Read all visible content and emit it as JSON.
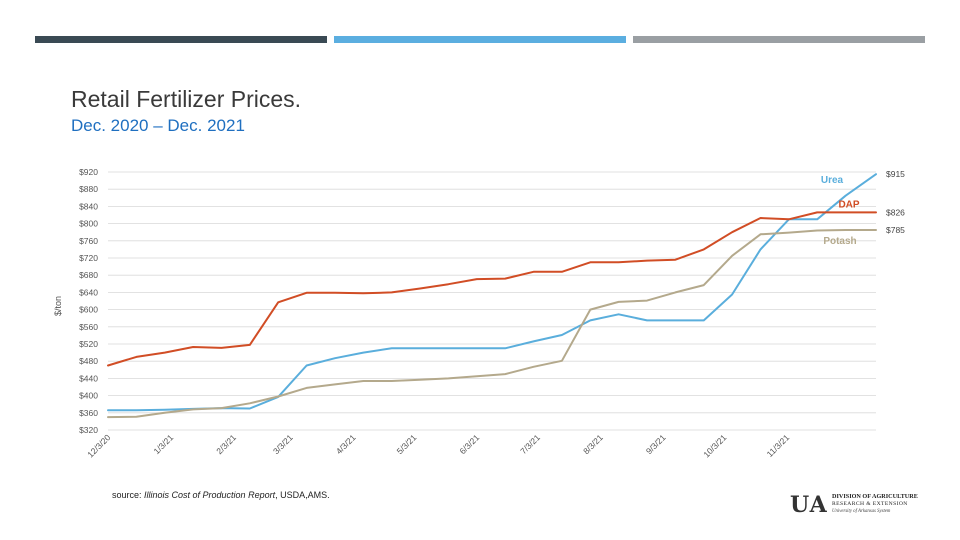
{
  "colors": {
    "bar1": "#3a4a54",
    "bar2": "#5baee0",
    "bar3": "#9a9fa3"
  },
  "header": {
    "title": "Retail Fertilizer Prices.",
    "subtitle": "Dec. 2020 – Dec. 2021"
  },
  "footer": {
    "source_prefix": "source: ",
    "source_italic": "Illinois Cost of Production Report",
    "source_suffix": ", USDA,AMS."
  },
  "logo": {
    "mark": "U A",
    "line1": "DIVISION OF AGRICULTURE",
    "line2": "RESEARCH & EXTENSION",
    "line3": "University of Arkansas System"
  },
  "chart_data": {
    "type": "line",
    "title": "",
    "xlabel": "",
    "ylabel": "$/ton",
    "ylim": [
      320,
      920
    ],
    "ytick_step": 40,
    "ytick_labels": [
      "$320",
      "$360",
      "$400",
      "$440",
      "$480",
      "$520",
      "$560",
      "$600",
      "$640",
      "$680",
      "$720",
      "$760",
      "$800",
      "$840",
      "$880",
      "$920"
    ],
    "xlim": [
      "2020-12-03",
      "2021-12-17"
    ],
    "xticks": [
      {
        "date": "2020-12-03",
        "label": "12/3/20"
      },
      {
        "date": "2021-01-03",
        "label": "1/3/21"
      },
      {
        "date": "2021-02-03",
        "label": "2/3/21"
      },
      {
        "date": "2021-03-03",
        "label": "3/3/21"
      },
      {
        "date": "2021-04-03",
        "label": "4/3/21"
      },
      {
        "date": "2021-05-03",
        "label": "5/3/21"
      },
      {
        "date": "2021-06-03",
        "label": "6/3/21"
      },
      {
        "date": "2021-07-03",
        "label": "7/3/21"
      },
      {
        "date": "2021-08-03",
        "label": "8/3/21"
      },
      {
        "date": "2021-09-03",
        "label": "9/3/21"
      },
      {
        "date": "2021-10-03",
        "label": "10/3/21"
      },
      {
        "date": "2021-11-03",
        "label": "11/3/21"
      }
    ],
    "grid": true,
    "series": [
      {
        "name": "Urea",
        "color": "#5aaedc",
        "end_label": "$915",
        "points": [
          [
            "2020-12-03",
            366
          ],
          [
            "2020-12-17",
            366
          ],
          [
            "2020-12-31",
            367
          ],
          [
            "2021-01-14",
            369
          ],
          [
            "2021-01-28",
            371
          ],
          [
            "2021-02-11",
            370
          ],
          [
            "2021-02-25",
            397
          ],
          [
            "2021-03-11",
            470
          ],
          [
            "2021-03-25",
            487
          ],
          [
            "2021-04-08",
            500
          ],
          [
            "2021-04-22",
            510
          ],
          [
            "2021-05-06",
            510
          ],
          [
            "2021-05-20",
            510
          ],
          [
            "2021-06-03",
            510
          ],
          [
            "2021-06-17",
            510
          ],
          [
            "2021-07-01",
            526
          ],
          [
            "2021-07-15",
            541
          ],
          [
            "2021-07-29",
            575
          ],
          [
            "2021-08-12",
            589
          ],
          [
            "2021-08-26",
            575
          ],
          [
            "2021-09-09",
            575
          ],
          [
            "2021-09-23",
            575
          ],
          [
            "2021-10-07",
            635
          ],
          [
            "2021-10-21",
            740
          ],
          [
            "2021-11-04",
            810
          ],
          [
            "2021-11-18",
            810
          ],
          [
            "2021-12-02",
            865
          ],
          [
            "2021-12-17",
            915
          ]
        ]
      },
      {
        "name": "DAP",
        "color": "#d14d25",
        "end_label": "$826",
        "points": [
          [
            "2020-12-03",
            470
          ],
          [
            "2020-12-17",
            490
          ],
          [
            "2020-12-31",
            500
          ],
          [
            "2021-01-14",
            513
          ],
          [
            "2021-01-28",
            511
          ],
          [
            "2021-02-11",
            518
          ],
          [
            "2021-02-25",
            617
          ],
          [
            "2021-03-11",
            639
          ],
          [
            "2021-03-25",
            639
          ],
          [
            "2021-04-08",
            638
          ],
          [
            "2021-04-22",
            640
          ],
          [
            "2021-05-06",
            649
          ],
          [
            "2021-05-20",
            659
          ],
          [
            "2021-06-03",
            671
          ],
          [
            "2021-06-17",
            672
          ],
          [
            "2021-07-01",
            688
          ],
          [
            "2021-07-15",
            688
          ],
          [
            "2021-07-29",
            710
          ],
          [
            "2021-08-12",
            710
          ],
          [
            "2021-08-26",
            714
          ],
          [
            "2021-09-09",
            716
          ],
          [
            "2021-09-23",
            740
          ],
          [
            "2021-10-07",
            780
          ],
          [
            "2021-10-21",
            813
          ],
          [
            "2021-11-04",
            810
          ],
          [
            "2021-11-18",
            826
          ],
          [
            "2021-12-02",
            826
          ],
          [
            "2021-12-17",
            826
          ]
        ]
      },
      {
        "name": "Potash",
        "color": "#b4a98c",
        "end_label": "$785",
        "points": [
          [
            "2020-12-03",
            350
          ],
          [
            "2020-12-17",
            351
          ],
          [
            "2020-12-31",
            360
          ],
          [
            "2021-01-14",
            368
          ],
          [
            "2021-01-28",
            371
          ],
          [
            "2021-02-11",
            382
          ],
          [
            "2021-02-25",
            398
          ],
          [
            "2021-03-11",
            418
          ],
          [
            "2021-03-25",
            426
          ],
          [
            "2021-04-08",
            434
          ],
          [
            "2021-04-22",
            434
          ],
          [
            "2021-05-06",
            437
          ],
          [
            "2021-05-20",
            440
          ],
          [
            "2021-06-03",
            445
          ],
          [
            "2021-06-17",
            450
          ],
          [
            "2021-07-01",
            467
          ],
          [
            "2021-07-15",
            481
          ],
          [
            "2021-07-29",
            600
          ],
          [
            "2021-08-12",
            618
          ],
          [
            "2021-08-26",
            621
          ],
          [
            "2021-09-09",
            640
          ],
          [
            "2021-09-23",
            657
          ],
          [
            "2021-10-07",
            725
          ],
          [
            "2021-10-21",
            775
          ],
          [
            "2021-11-04",
            779
          ],
          [
            "2021-11-18",
            784
          ],
          [
            "2021-12-02",
            785
          ],
          [
            "2021-12-17",
            785
          ]
        ]
      }
    ]
  }
}
